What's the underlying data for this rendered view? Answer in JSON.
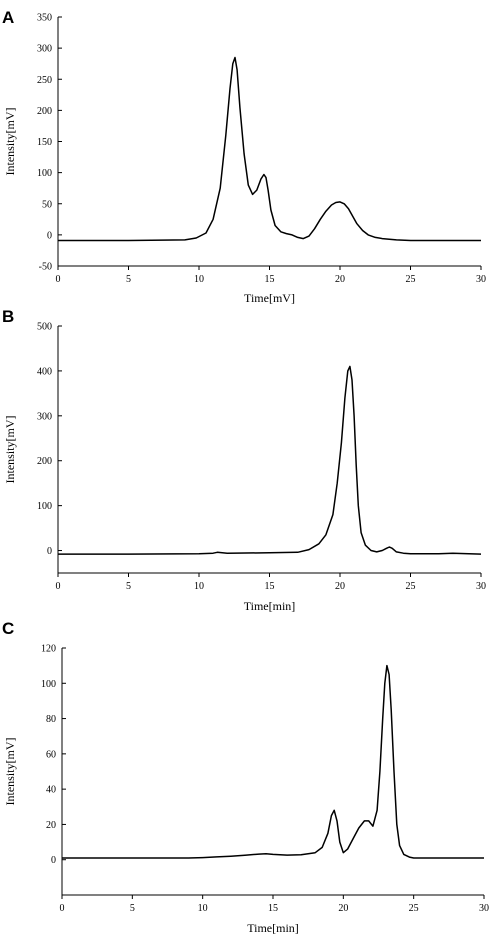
{
  "chart_data": [
    {
      "panel_label": "A",
      "type": "line",
      "xlabel": "Time[mV]",
      "ylabel": "Intensity[mV]",
      "xlim": [
        0,
        30
      ],
      "ylim": [
        -50,
        350
      ],
      "x_ticks": [
        0,
        5,
        10,
        15,
        20,
        25,
        30
      ],
      "y_ticks": [
        -50,
        0,
        50,
        100,
        150,
        200,
        250,
        300,
        350
      ],
      "grid": false,
      "series": [
        {
          "x": [
            0,
            5,
            9,
            9.8,
            10.5,
            11,
            11.5,
            11.9,
            12.2,
            12.4,
            12.55,
            12.7,
            12.9,
            13.2,
            13.5,
            13.8,
            14.1,
            14.4,
            14.6,
            14.75,
            14.9,
            15.1,
            15.4,
            15.8,
            16.2,
            16.6,
            17,
            17.4,
            17.8,
            18.2,
            18.6,
            19,
            19.4,
            19.7,
            20,
            20.3,
            20.6,
            20.9,
            21.2,
            21.6,
            22,
            22.5,
            23,
            24,
            25,
            27,
            30
          ],
          "y": [
            -9,
            -9,
            -8,
            -5,
            3,
            25,
            75,
            160,
            235,
            275,
            285,
            265,
            205,
            130,
            80,
            65,
            72,
            90,
            97,
            92,
            72,
            40,
            15,
            5,
            2,
            0,
            -4,
            -6,
            -2,
            10,
            25,
            38,
            48,
            52,
            53,
            50,
            42,
            30,
            18,
            7,
            0,
            -4,
            -6,
            -8,
            -9,
            -9,
            -9
          ]
        }
      ]
    },
    {
      "panel_label": "B",
      "type": "line",
      "xlabel": "Time[min]",
      "ylabel": "Intensity[mV]",
      "xlim": [
        0,
        30
      ],
      "ylim": [
        -50,
        500
      ],
      "x_ticks": [
        0,
        5,
        10,
        15,
        20,
        25,
        30
      ],
      "y_ticks": [
        0,
        100,
        200,
        300,
        400,
        500
      ],
      "grid": false,
      "series": [
        {
          "x": [
            0,
            5,
            10,
            11,
            11.3,
            12,
            15,
            17,
            17.8,
            18.5,
            19,
            19.5,
            19.8,
            20.1,
            20.35,
            20.55,
            20.7,
            20.85,
            21,
            21.15,
            21.3,
            21.5,
            21.8,
            22.2,
            22.6,
            23,
            23.3,
            23.5,
            23.7,
            24,
            24.5,
            25,
            27,
            28,
            30
          ],
          "y": [
            -8,
            -8,
            -7,
            -6,
            -4,
            -6,
            -5,
            -4,
            2,
            15,
            35,
            80,
            150,
            240,
            340,
            400,
            410,
            380,
            300,
            190,
            100,
            40,
            12,
            0,
            -3,
            0,
            5,
            8,
            5,
            -3,
            -6,
            -7,
            -7,
            -6,
            -8
          ]
        }
      ]
    },
    {
      "panel_label": "C",
      "type": "line",
      "xlabel": "Time[min]",
      "ylabel": "Intensity[mV]",
      "xlim": [
        0,
        30
      ],
      "ylim": [
        -20,
        120
      ],
      "x_ticks": [
        0,
        5,
        10,
        15,
        20,
        25,
        30
      ],
      "y_ticks": [
        0,
        20,
        40,
        60,
        80,
        100,
        120
      ],
      "grid": false,
      "series": [
        {
          "x": [
            0,
            5,
            9,
            10,
            11,
            12,
            13,
            14,
            14.5,
            15,
            15.5,
            16,
            17,
            18,
            18.5,
            18.9,
            19.15,
            19.35,
            19.55,
            19.75,
            20,
            20.3,
            20.7,
            21.1,
            21.5,
            21.8,
            22.1,
            22.4,
            22.6,
            22.8,
            22.95,
            23.1,
            23.25,
            23.4,
            23.6,
            23.8,
            24,
            24.3,
            24.7,
            25,
            26,
            28,
            30
          ],
          "y": [
            1,
            1,
            1,
            1.2,
            1.6,
            2,
            2.5,
            3.2,
            3.4,
            3,
            2.8,
            2.6,
            2.8,
            4,
            7,
            15,
            25,
            28,
            22,
            10,
            4,
            6,
            12,
            18,
            22,
            22,
            19,
            28,
            50,
            80,
            100,
            110,
            105,
            85,
            50,
            20,
            8,
            3,
            1.5,
            1,
            1,
            1,
            1
          ]
        }
      ]
    }
  ]
}
